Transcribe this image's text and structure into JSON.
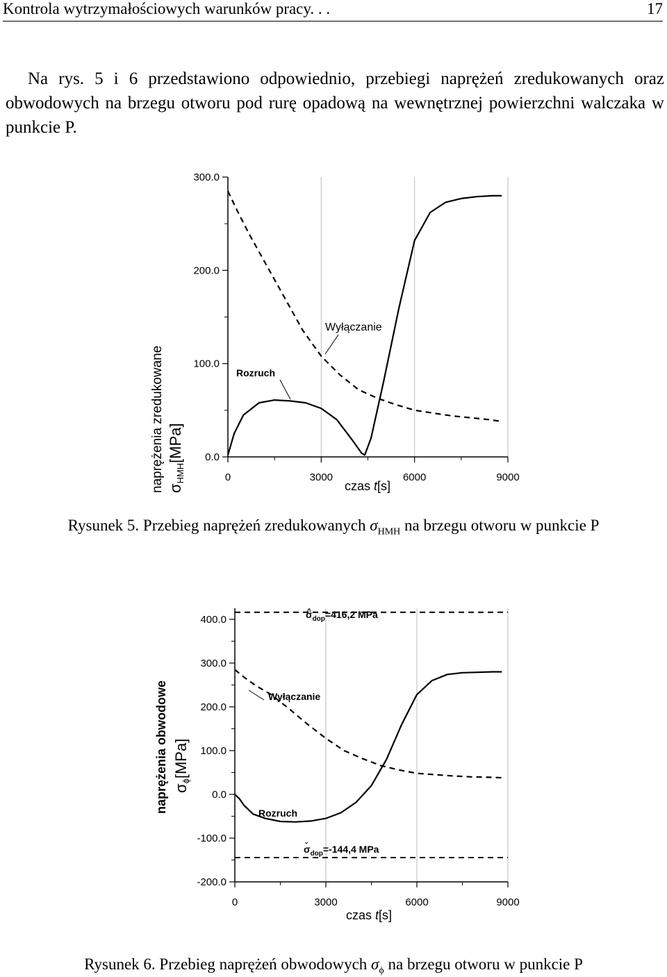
{
  "header": {
    "title": "Kontrola wytrzymałościowych warunków pracy. . .",
    "page_number": "17"
  },
  "intro_text": "Na rys. 5 i 6 przedstawiono odpowiednio, przebiegi naprężeń zredukowanych oraz obwodowych na brzegu otworu pod rurę opadową na wewnętrznej powierzchni walczaka w punkcie P.",
  "figure5": {
    "caption_prefix": "Rysunek 5. Przebieg naprężeń zredukowanych ",
    "caption_symbol": "σ",
    "caption_sub": "HMH",
    "caption_suffix": " na brzegu otworu w punkcie P",
    "ylabel_line1": "naprężenia  zredukowane",
    "ylabel_sigma": "σ",
    "ylabel_sub": "HMH",
    "ylabel_unit": "[MPa]",
    "xlabel_prefix": "czas ",
    "xlabel_var": "t",
    "xlabel_unit": "[s]",
    "annotation_start": "Rozruch",
    "annotation_stop": "Wyłączanie"
  },
  "figure6": {
    "caption_prefix": "Rysunek 6. Przebieg naprężeń obwodowych ",
    "caption_symbol": "σ",
    "caption_sub": "ϕ",
    "caption_suffix": " na brzegu otworu w punkcie P",
    "ylabel_line1": "naprężenia obwodowe",
    "ylabel_sigma": "σ",
    "ylabel_sub": "ϕ",
    "ylabel_unit": "[MPa]",
    "xlabel_prefix": "czas ",
    "xlabel_var": "t",
    "xlabel_unit": "[s]",
    "annotation_start": "Rozruch",
    "annotation_stop": "Wyłączanie",
    "limit_upper_sigma": "σ",
    "limit_upper_mark": "^",
    "limit_upper_sub": "dop",
    "limit_upper_text": "=416,2 MPa",
    "limit_lower_sigma": "σ",
    "limit_lower_mark": "ˇ",
    "limit_lower_sub": "dop",
    "limit_lower_text": "=-144,4 MPa"
  },
  "chart_data": [
    {
      "type": "line",
      "xlim": [
        0,
        9000
      ],
      "ylim": [
        0,
        300
      ],
      "x_ticks": [
        "0",
        "3000",
        "6000",
        "9000"
      ],
      "y_ticks": [
        "0.0",
        "100.0",
        "200.0",
        "300.0"
      ],
      "grid": true,
      "series": [
        {
          "style": "solid",
          "x": [
            0,
            200,
            500,
            1000,
            1500,
            2000,
            2500,
            3000,
            3500,
            4000,
            4300,
            4400,
            4600,
            5000,
            5500,
            6000,
            6500,
            7000,
            7500,
            8000,
            8500,
            8800
          ],
          "y": [
            2,
            25,
            45,
            58,
            61,
            60,
            58,
            52,
            40,
            18,
            4,
            2,
            20,
            80,
            160,
            232,
            262,
            273,
            277,
            279,
            280,
            280
          ]
        },
        {
          "style": "dashed",
          "x": [
            0,
            300,
            700,
            1200,
            1800,
            2400,
            3000,
            3600,
            4200,
            4800,
            5400,
            6000,
            6600,
            7200,
            7800,
            8400,
            8800
          ],
          "y": [
            285,
            264,
            238,
            208,
            172,
            136,
            108,
            88,
            72,
            63,
            56,
            50,
            47,
            44,
            42,
            40,
            38
          ]
        }
      ]
    },
    {
      "type": "line",
      "xlim": [
        0,
        9000
      ],
      "ylim": [
        -200,
        450
      ],
      "x_ticks": [
        "0",
        "3000",
        "6000",
        "9000"
      ],
      "y_ticks": [
        "-200.0",
        "-100.0",
        "0.0",
        "100.0",
        "200.0",
        "300.0",
        "400.0"
      ],
      "grid": true,
      "reference_lines": [
        416.2,
        -144.4
      ],
      "series": [
        {
          "style": "solid",
          "x": [
            0,
            150,
            300,
            600,
            1000,
            1500,
            2000,
            2500,
            3000,
            3500,
            4000,
            4500,
            5000,
            5500,
            6000,
            6500,
            7000,
            7500,
            8000,
            8500,
            8800
          ],
          "y": [
            0,
            -10,
            -25,
            -45,
            -55,
            -62,
            -63,
            -61,
            -55,
            -42,
            -18,
            20,
            80,
            160,
            228,
            260,
            274,
            278,
            279,
            280,
            280
          ]
        },
        {
          "style": "dashed",
          "x": [
            0,
            300,
            700,
            1200,
            1800,
            2400,
            3000,
            3600,
            4200,
            4800,
            5400,
            6000,
            6600,
            7200,
            7800,
            8400,
            8800
          ],
          "y": [
            285,
            268,
            248,
            228,
            195,
            160,
            128,
            100,
            82,
            66,
            56,
            48,
            45,
            42,
            40,
            39,
            38
          ]
        }
      ]
    }
  ]
}
